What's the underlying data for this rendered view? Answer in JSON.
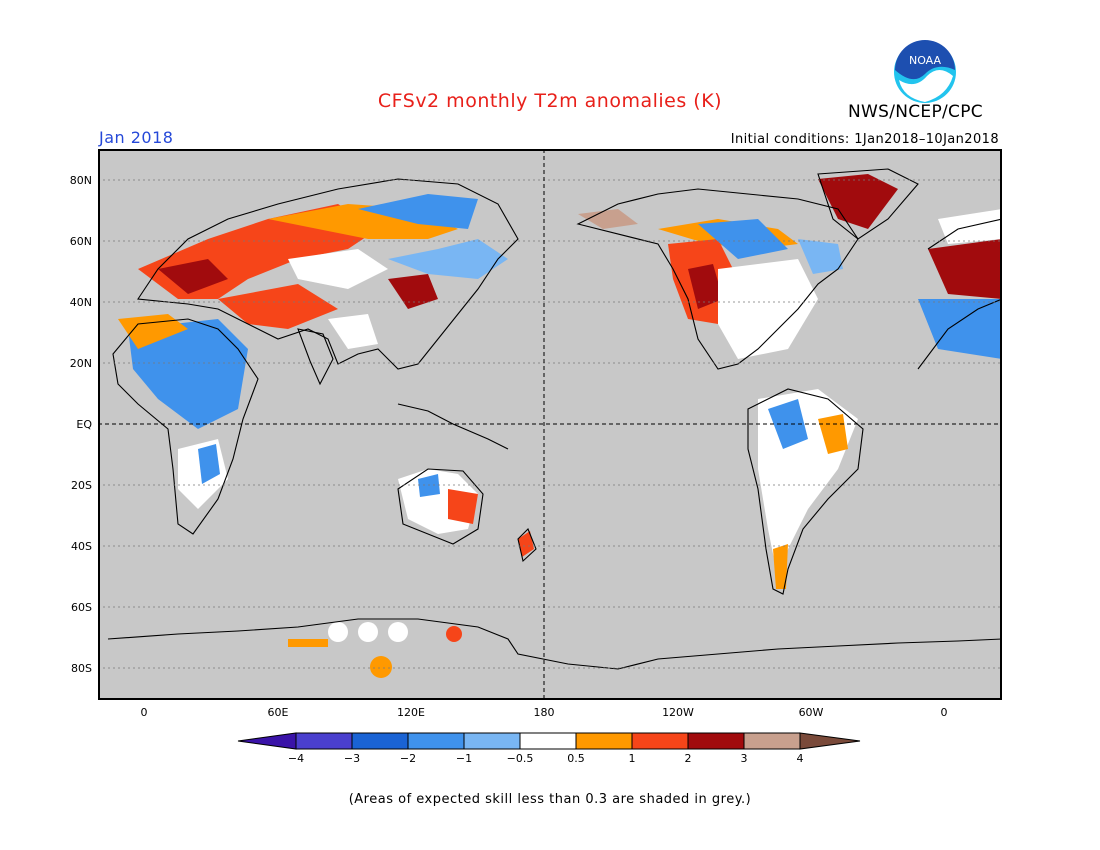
{
  "header": {
    "title": "CFSv2 monthly T2m anomalies (K)",
    "org": "NWS/NCEP/CPC",
    "period": "Jan 2018",
    "initial_conditions": "Initial conditions: 1Jan2018–10Jan2018",
    "logo_text": "NOAA"
  },
  "colors": {
    "title": "#e8201a",
    "period": "#2548d8",
    "no_skill_grey": "#c8c8c8",
    "land_outline": "#000000",
    "noaa_blue": "#1d4fb0",
    "noaa_cyan": "#22c4ee"
  },
  "map": {
    "y_ticks": [
      "80N",
      "60N",
      "40N",
      "20N",
      "EQ",
      "20S",
      "40S",
      "60S",
      "80S"
    ],
    "x_ticks": [
      "0",
      "60E",
      "120E",
      "180",
      "120W",
      "60W",
      "0"
    ],
    "background": "grey (skill < 0.3)",
    "dashed_reference_lines": [
      "EQ",
      "180"
    ]
  },
  "colorbar": {
    "ticks": [
      "−4",
      "−3",
      "−2",
      "−1",
      "−0.5",
      "0.5",
      "1",
      "2",
      "3",
      "4"
    ],
    "colors": [
      "#3a13a8",
      "#4a3fce",
      "#1a63d4",
      "#3f92ec",
      "#79b6f3",
      "#ffffff",
      "#ff9900",
      "#f64519",
      "#a10b0d",
      "#c8a08e",
      "#7a4a3a"
    ]
  },
  "footnote": "(Areas of expected skill less than 0.3 are shaded in grey.)"
}
